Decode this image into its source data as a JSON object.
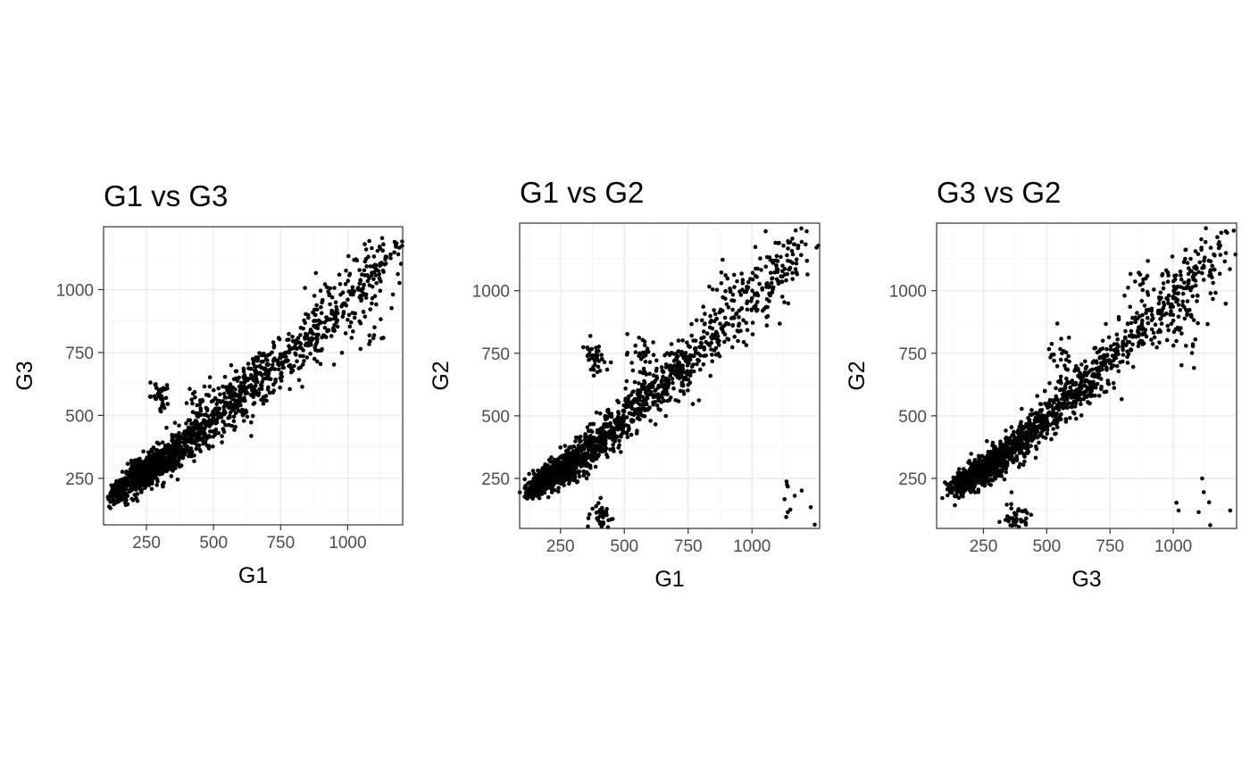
{
  "chart_data": [
    {
      "type": "scatter",
      "title": "G1 vs G3",
      "xlabel": "G1",
      "ylabel": "G3",
      "xlim": [
        90,
        1205
      ],
      "ylim": [
        65,
        1250
      ],
      "xticks": [
        250,
        500,
        750,
        1000
      ],
      "yticks": [
        250,
        500,
        750,
        1000
      ],
      "grid": true,
      "series": [
        {
          "name": "points",
          "x": [
            130,
            150,
            170,
            190,
            200,
            210,
            220,
            230,
            240,
            250,
            260,
            270,
            280,
            290,
            300,
            310,
            320,
            340,
            360,
            380,
            400,
            420,
            440,
            460,
            480,
            500,
            520,
            540,
            560,
            580,
            600,
            620,
            640,
            660,
            680,
            700,
            720,
            740,
            760,
            780,
            800,
            820,
            840,
            860,
            880,
            900,
            920,
            940,
            960,
            980,
            1000,
            1020,
            1040,
            1060,
            1080,
            1100,
            1120,
            1140,
            1160,
            1180,
            300,
            1100,
            1000,
            450,
            880,
            620
          ],
          "y": [
            180,
            200,
            215,
            235,
            245,
            250,
            260,
            265,
            270,
            280,
            285,
            290,
            300,
            305,
            310,
            320,
            325,
            345,
            360,
            375,
            395,
            410,
            430,
            450,
            470,
            490,
            505,
            520,
            545,
            560,
            580,
            600,
            620,
            640,
            660,
            680,
            700,
            715,
            735,
            750,
            770,
            790,
            810,
            830,
            850,
            870,
            890,
            905,
            920,
            940,
            960,
            980,
            1000,
            1020,
            1045,
            1070,
            1095,
            1120,
            1140,
            1170,
            580,
            850,
            880,
            560,
            760,
            520
          ]
        }
      ]
    },
    {
      "type": "scatter",
      "title": "G1 vs G2",
      "xlabel": "G1",
      "ylabel": "G2",
      "xlim": [
        90,
        1265
      ],
      "ylim": [
        50,
        1270
      ],
      "xticks": [
        250,
        500,
        750,
        1000
      ],
      "yticks": [
        250,
        500,
        750,
        1000
      ],
      "grid": true,
      "series": [
        {
          "name": "points",
          "x": [
            130,
            150,
            170,
            190,
            200,
            210,
            220,
            230,
            240,
            250,
            260,
            270,
            280,
            290,
            300,
            310,
            320,
            340,
            360,
            380,
            400,
            420,
            440,
            460,
            480,
            500,
            520,
            540,
            560,
            580,
            600,
            620,
            640,
            660,
            680,
            700,
            720,
            740,
            760,
            780,
            800,
            820,
            840,
            860,
            880,
            900,
            920,
            940,
            960,
            980,
            1000,
            1020,
            1040,
            1060,
            1080,
            1100,
            1120,
            1140,
            1160,
            1180,
            410,
            1140,
            880,
            380,
            560,
            720
          ],
          "y": [
            200,
            215,
            225,
            235,
            245,
            255,
            260,
            265,
            270,
            280,
            285,
            295,
            300,
            305,
            315,
            320,
            330,
            345,
            365,
            380,
            400,
            415,
            435,
            450,
            470,
            490,
            510,
            525,
            545,
            565,
            585,
            600,
            620,
            640,
            660,
            680,
            700,
            720,
            740,
            760,
            775,
            795,
            815,
            835,
            850,
            870,
            890,
            910,
            930,
            950,
            970,
            990,
            1010,
            1030,
            1050,
            1075,
            1100,
            1120,
            1145,
            1170,
            105,
            115,
            1030,
            740,
            750,
            690
          ]
        }
      ]
    },
    {
      "type": "scatter",
      "title": "G3 vs G2",
      "xlabel": "G3",
      "ylabel": "G2",
      "xlim": [
        65,
        1250
      ],
      "ylim": [
        50,
        1270
      ],
      "xticks": [
        250,
        500,
        750,
        1000
      ],
      "yticks": [
        250,
        500,
        750,
        1000
      ],
      "grid": true,
      "series": [
        {
          "name": "points",
          "x": [
            130,
            150,
            170,
            190,
            200,
            210,
            220,
            230,
            240,
            250,
            260,
            270,
            280,
            290,
            300,
            310,
            320,
            340,
            360,
            380,
            400,
            420,
            440,
            460,
            480,
            500,
            520,
            540,
            560,
            580,
            600,
            620,
            640,
            660,
            680,
            700,
            720,
            740,
            760,
            780,
            800,
            820,
            840,
            860,
            880,
            900,
            920,
            940,
            960,
            980,
            1000,
            1020,
            1040,
            1060,
            1080,
            1100,
            1120,
            1140,
            1160,
            1180,
            380,
            1100,
            1000,
            880,
            560,
            1050
          ],
          "y": [
            210,
            220,
            230,
            240,
            250,
            255,
            260,
            270,
            275,
            285,
            290,
            295,
            305,
            310,
            320,
            325,
            335,
            350,
            365,
            385,
            400,
            420,
            435,
            455,
            470,
            490,
            510,
            530,
            545,
            565,
            585,
            605,
            620,
            640,
            660,
            680,
            700,
            720,
            740,
            760,
            780,
            795,
            815,
            835,
            850,
            870,
            890,
            910,
            930,
            950,
            970,
            990,
            1010,
            1030,
            1050,
            1075,
            1100,
            1120,
            1145,
            1170,
            105,
            115,
            880,
            1030,
            750,
            780
          ]
        }
      ]
    }
  ]
}
